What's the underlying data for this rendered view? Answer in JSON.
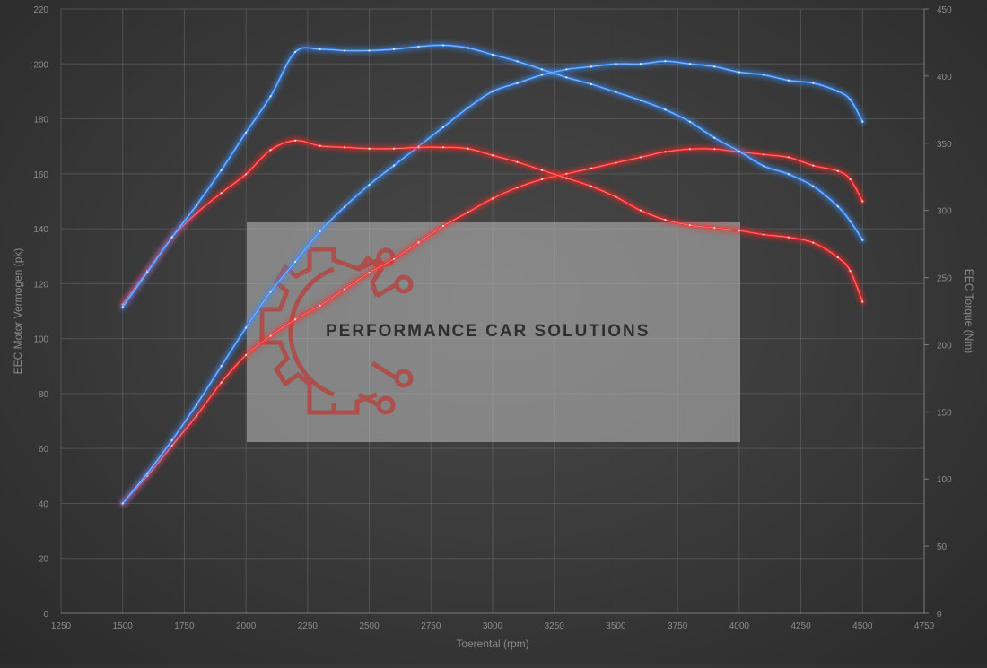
{
  "chart_data": {
    "type": "line",
    "xlabel": "Toerental (rpm)",
    "ylabel_left": "EEC Motor Vermogen (pk)",
    "ylabel_right": "EEC Torque (Nm)",
    "xlim": [
      1250,
      4750
    ],
    "ylim_left": [
      0,
      220
    ],
    "ylim_right": [
      0,
      450
    ],
    "x_ticks": [
      "1250",
      "1500",
      "1750",
      "2000",
      "2250",
      "2500",
      "2750",
      "3000",
      "3250",
      "3500",
      "3750",
      "4000",
      "4250",
      "4500",
      "4750"
    ],
    "y_ticks_left": [
      "0",
      "20",
      "40",
      "60",
      "80",
      "100",
      "120",
      "140",
      "160",
      "180",
      "200",
      "220"
    ],
    "y_ticks_right": [
      "0",
      "50",
      "100",
      "150",
      "200",
      "250",
      "300",
      "350",
      "400",
      "450"
    ],
    "grid": true,
    "series": [
      {
        "axis": "left",
        "color": "#ff2b2b",
        "points": [
          [
            1500,
            40
          ],
          [
            1600,
            50
          ],
          [
            1700,
            61
          ],
          [
            1800,
            72
          ],
          [
            1900,
            84
          ],
          [
            2000,
            94
          ],
          [
            2100,
            101
          ],
          [
            2200,
            107
          ],
          [
            2300,
            112
          ],
          [
            2400,
            118
          ],
          [
            2500,
            124
          ],
          [
            2600,
            129
          ],
          [
            2700,
            135
          ],
          [
            2800,
            141
          ],
          [
            2900,
            146
          ],
          [
            3000,
            151
          ],
          [
            3100,
            155
          ],
          [
            3200,
            158
          ],
          [
            3300,
            160
          ],
          [
            3400,
            162
          ],
          [
            3500,
            164
          ],
          [
            3600,
            166
          ],
          [
            3700,
            168
          ],
          [
            3800,
            169
          ],
          [
            3900,
            169
          ],
          [
            4000,
            168
          ],
          [
            4100,
            167
          ],
          [
            4200,
            166
          ],
          [
            4300,
            163
          ],
          [
            4400,
            161
          ],
          [
            4450,
            158
          ],
          [
            4500,
            150
          ]
        ]
      },
      {
        "axis": "left",
        "color": "#3d8fff",
        "points": [
          [
            1500,
            40
          ],
          [
            1600,
            51
          ],
          [
            1700,
            63
          ],
          [
            1800,
            76
          ],
          [
            1900,
            90
          ],
          [
            2000,
            104
          ],
          [
            2100,
            117
          ],
          [
            2200,
            128
          ],
          [
            2300,
            139
          ],
          [
            2400,
            148
          ],
          [
            2500,
            156
          ],
          [
            2600,
            163
          ],
          [
            2700,
            170
          ],
          [
            2800,
            177
          ],
          [
            2900,
            184
          ],
          [
            3000,
            190
          ],
          [
            3100,
            193
          ],
          [
            3200,
            196
          ],
          [
            3300,
            198
          ],
          [
            3400,
            199
          ],
          [
            3500,
            200
          ],
          [
            3600,
            200
          ],
          [
            3700,
            201
          ],
          [
            3800,
            200
          ],
          [
            3900,
            199
          ],
          [
            4000,
            197
          ],
          [
            4100,
            196
          ],
          [
            4200,
            194
          ],
          [
            4300,
            193
          ],
          [
            4400,
            190
          ],
          [
            4450,
            187
          ],
          [
            4500,
            179
          ]
        ]
      },
      {
        "axis": "right",
        "color": "#ff2b2b",
        "points": [
          [
            1500,
            230
          ],
          [
            1600,
            255
          ],
          [
            1700,
            280
          ],
          [
            1800,
            298
          ],
          [
            1900,
            313
          ],
          [
            2000,
            327
          ],
          [
            2100,
            345
          ],
          [
            2200,
            352
          ],
          [
            2300,
            348
          ],
          [
            2400,
            347
          ],
          [
            2500,
            346
          ],
          [
            2600,
            346
          ],
          [
            2700,
            347
          ],
          [
            2800,
            347
          ],
          [
            2900,
            346
          ],
          [
            3000,
            341
          ],
          [
            3100,
            336
          ],
          [
            3200,
            330
          ],
          [
            3300,
            324
          ],
          [
            3400,
            318
          ],
          [
            3500,
            310
          ],
          [
            3600,
            300
          ],
          [
            3700,
            293
          ],
          [
            3800,
            289
          ],
          [
            3900,
            287
          ],
          [
            4000,
            285
          ],
          [
            4100,
            282
          ],
          [
            4200,
            280
          ],
          [
            4300,
            276
          ],
          [
            4400,
            265
          ],
          [
            4450,
            255
          ],
          [
            4500,
            232
          ]
        ]
      },
      {
        "axis": "right",
        "color": "#3d8fff",
        "points": [
          [
            1500,
            228
          ],
          [
            1600,
            254
          ],
          [
            1700,
            280
          ],
          [
            1800,
            304
          ],
          [
            1900,
            330
          ],
          [
            2000,
            358
          ],
          [
            2100,
            385
          ],
          [
            2200,
            418
          ],
          [
            2300,
            420
          ],
          [
            2400,
            419
          ],
          [
            2500,
            419
          ],
          [
            2600,
            420
          ],
          [
            2700,
            422
          ],
          [
            2800,
            423
          ],
          [
            2900,
            421
          ],
          [
            3000,
            416
          ],
          [
            3100,
            411
          ],
          [
            3200,
            405
          ],
          [
            3300,
            399
          ],
          [
            3400,
            394
          ],
          [
            3500,
            388
          ],
          [
            3600,
            382
          ],
          [
            3700,
            375
          ],
          [
            3800,
            366
          ],
          [
            3900,
            354
          ],
          [
            4000,
            344
          ],
          [
            4100,
            333
          ],
          [
            4200,
            327
          ],
          [
            4300,
            318
          ],
          [
            4400,
            303
          ],
          [
            4450,
            292
          ],
          [
            4500,
            278
          ]
        ]
      }
    ]
  },
  "watermark": {
    "text": "PERFORMANCE CAR SOLUTIONS"
  }
}
